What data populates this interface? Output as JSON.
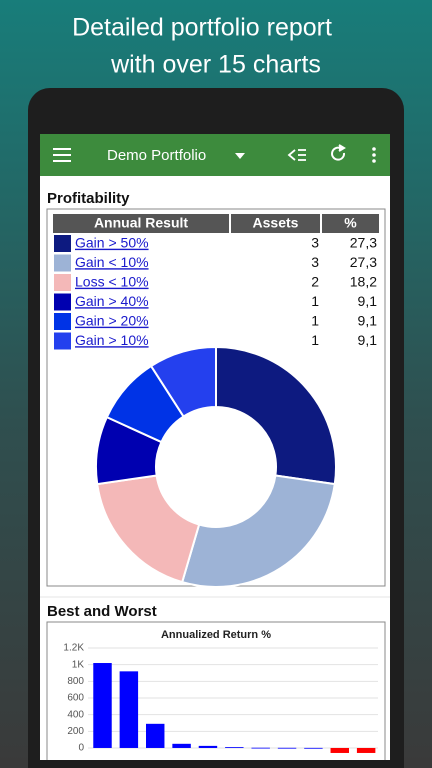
{
  "header": {
    "lines": [
      "Detailed portfolio report",
      "with over 15 charts"
    ]
  },
  "toolbar": {
    "title": "Demo Portfolio"
  },
  "profitability": {
    "title": "Profitability",
    "columns": [
      "Annual Result",
      "Assets",
      "%"
    ],
    "rows": [
      {
        "label": "Gain > 50%",
        "color": "#0d1a80",
        "assets": 3,
        "percent": 27.3,
        "percent_label": "27,3"
      },
      {
        "label": "Gain < 10%",
        "color": "#9db3d6",
        "assets": 3,
        "percent": 27.3,
        "percent_label": "27,3"
      },
      {
        "label": "Loss < 10%",
        "color": "#f4b8b8",
        "assets": 2,
        "percent": 18.2,
        "percent_label": "18,2"
      },
      {
        "label": "Gain > 40%",
        "color": "#0000b0",
        "assets": 1,
        "percent": 9.1,
        "percent_label": "9,1"
      },
      {
        "label": "Gain > 20%",
        "color": "#0033e6",
        "assets": 1,
        "percent": 9.1,
        "percent_label": "9,1"
      },
      {
        "label": "Gain > 10%",
        "color": "#2440ee",
        "assets": 1,
        "percent": 9.1,
        "percent_label": "9,1"
      }
    ]
  },
  "best_worst": {
    "title": "Best and Worst",
    "chart": {
      "type": "bar",
      "title": "Annualized Return %",
      "categories": [
        null,
        null,
        null,
        null,
        null,
        null,
        null,
        null,
        null,
        null,
        null
      ],
      "values": [
        1020,
        920,
        290,
        50,
        25,
        10,
        3,
        2,
        1,
        -60,
        -60
      ],
      "color": "#0000ff",
      "negative_color": "#ff0000",
      "ylim": [
        -100,
        1300
      ],
      "yticks": [
        0,
        200,
        400,
        600,
        800,
        {
          "value": 1000,
          "label": "1K"
        },
        {
          "value": 1200,
          "label": "1.2K"
        }
      ],
      "grid": true
    }
  }
}
